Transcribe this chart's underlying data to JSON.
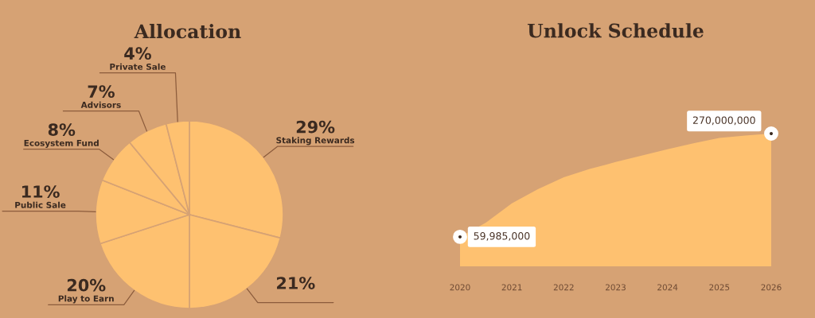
{
  "chart_data": [
    {
      "type": "pie",
      "title": "Allocation",
      "categories": [
        "Staking Rewards",
        null,
        "Play to Earn",
        "Public Sale",
        "Ecosystem Fund",
        "Advisors",
        "Private Sale"
      ],
      "values": [
        29,
        21,
        20,
        11,
        8,
        7,
        4
      ],
      "value_labels": [
        "29%",
        "21%",
        "20%",
        "11%",
        "8%",
        "7%",
        "4%"
      ],
      "colors": [
        "#fec170",
        "#fec170",
        "#fec170",
        "#fec170",
        "#fec170",
        "#fec170",
        "#fec170"
      ]
    },
    {
      "type": "area",
      "title": "Unlock Schedule",
      "xlim": [
        2020,
        2026
      ],
      "xticks": [
        2020,
        2021,
        2022,
        2023,
        2024,
        2025,
        2026
      ],
      "tick_labels": "x",
      "series": [
        {
          "type": "area",
          "color": "#fec170",
          "x": [
            2020,
            2020.5,
            2021,
            2021.5,
            2022,
            2022.5,
            2023,
            2023.5,
            2024,
            2024.5,
            2025,
            2025.5,
            2026
          ],
          "values": [
            59985000,
            89000000,
            128000000,
            157000000,
            181000000,
            198000000,
            212000000,
            225000000,
            238000000,
            250000000,
            261000000,
            266000000,
            270000000
          ]
        },
        {
          "type": "scatter",
          "color": "#ffffff",
          "marker": "circle",
          "x": [
            2020,
            2026
          ],
          "values": [
            59985000,
            270000000
          ],
          "value_labels": [
            "59,985,000",
            "270,000,000"
          ]
        }
      ]
    }
  ]
}
